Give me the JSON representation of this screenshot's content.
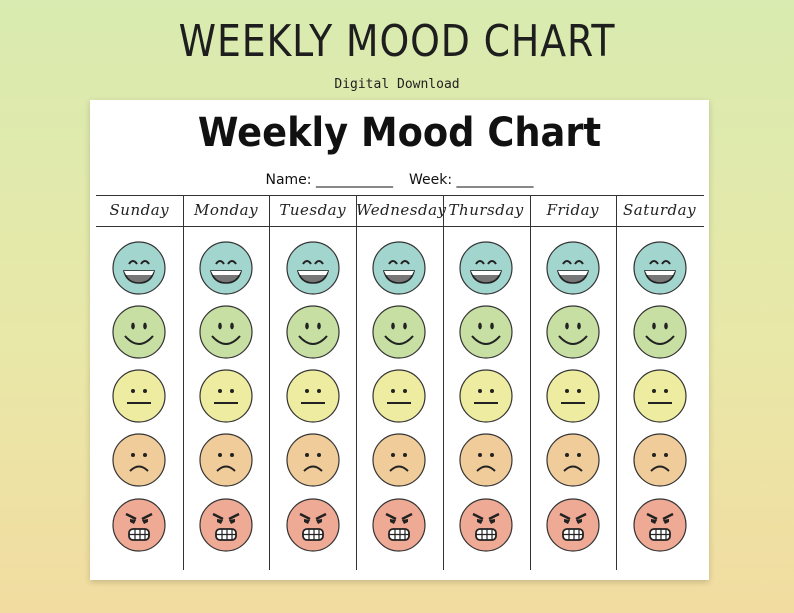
{
  "header": {
    "title": "WEEKLY MOOD CHART",
    "subtitle": "Digital Download"
  },
  "sheet": {
    "title": "Weekly Mood Chart",
    "name_label": "Name: ___________",
    "week_label": "Week: ___________"
  },
  "days": [
    "Sunday",
    "Monday",
    "Tuesday",
    "Wednesday",
    "Thursday",
    "Friday",
    "Saturday"
  ],
  "moods": [
    {
      "icon": "laughing-face-icon",
      "color": "#a3d5cf"
    },
    {
      "icon": "smiling-face-icon",
      "color": "#c7dfa2"
    },
    {
      "icon": "neutral-face-icon",
      "color": "#eeeca0"
    },
    {
      "icon": "sad-face-icon",
      "color": "#f0cc9a"
    },
    {
      "icon": "angry-face-icon",
      "color": "#eeaa95"
    }
  ]
}
